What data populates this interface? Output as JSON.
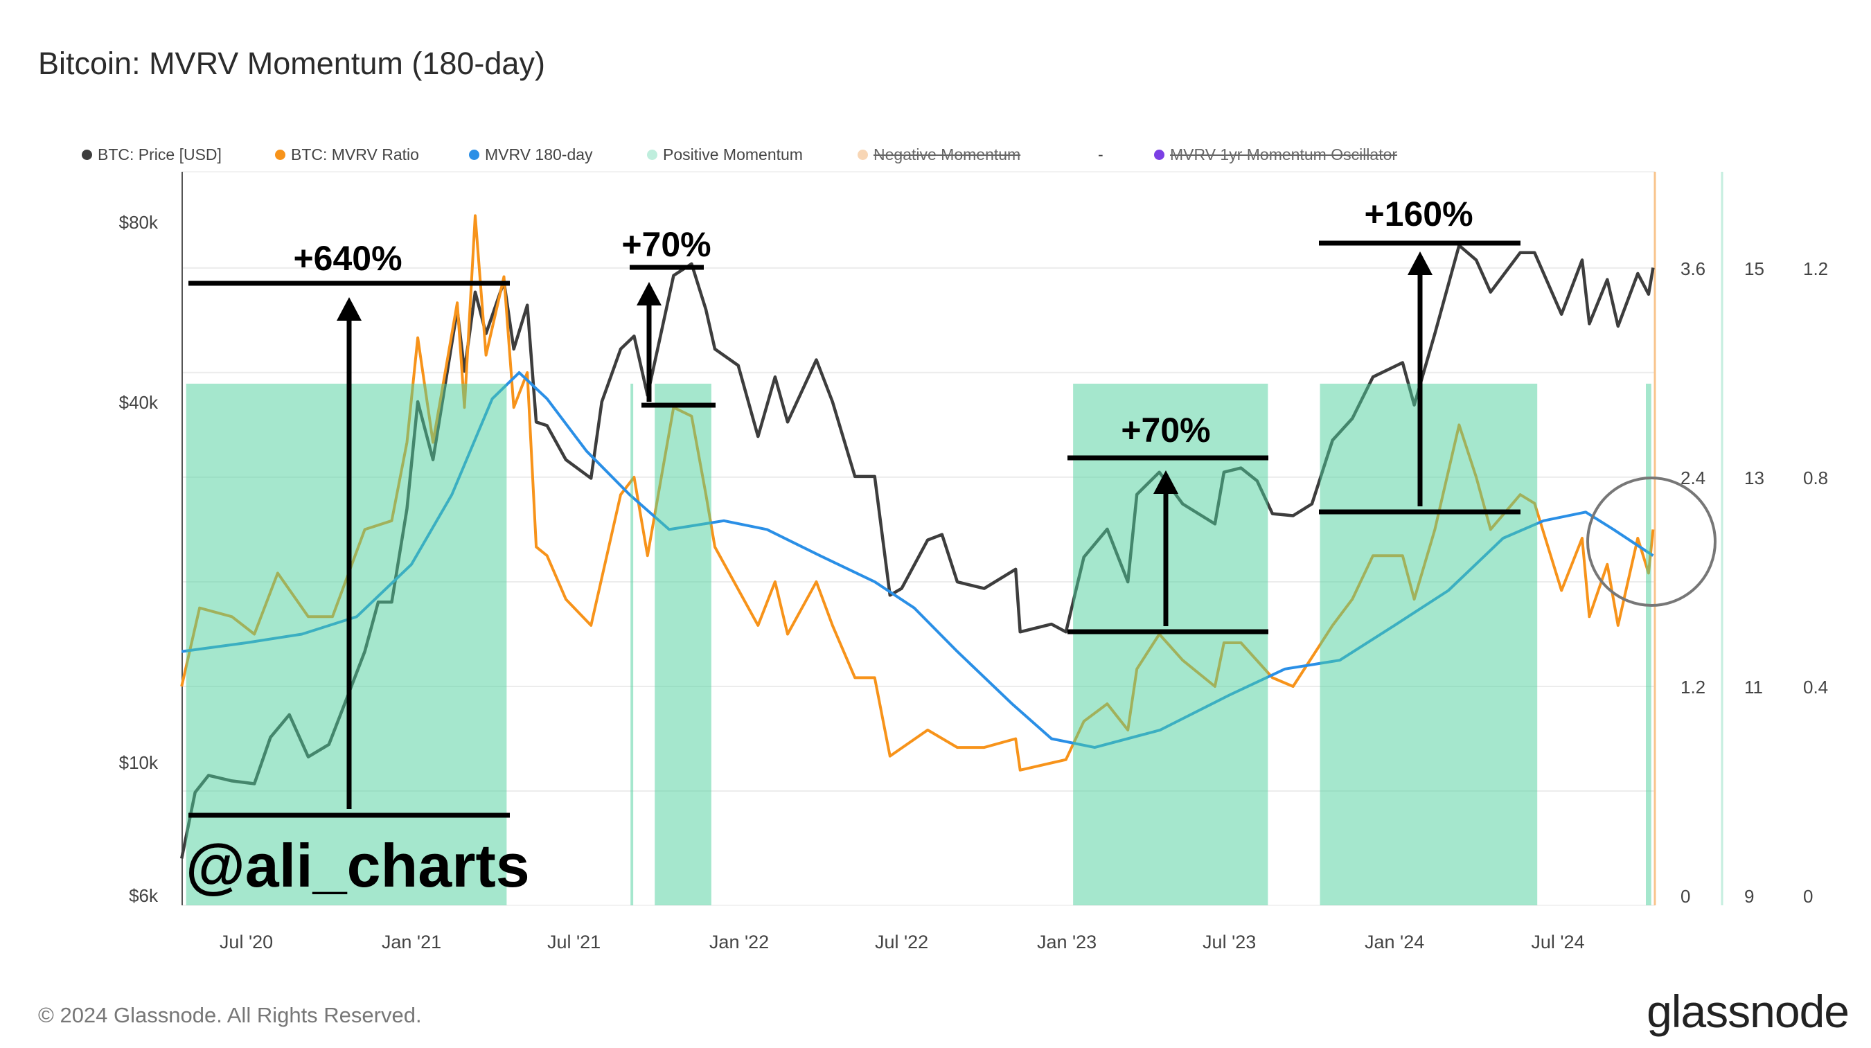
{
  "title": "Bitcoin: MVRV Momentum (180-day)",
  "legend": [
    {
      "label": "BTC: Price [USD]",
      "color": "#3d3d3d",
      "active": true
    },
    {
      "label": "BTC: MVRV Ratio",
      "color": "#f7931a",
      "active": true
    },
    {
      "label": "MVRV 180-day",
      "color": "#2a8fe6",
      "active": true
    },
    {
      "label": "Positive Momentum",
      "color": "#bfeedd",
      "active": true
    },
    {
      "label": "Negative Momentum",
      "color": "#f8d6b5",
      "active": false
    },
    {
      "label": "-",
      "color": "",
      "active": true
    },
    {
      "label": "MVRV 1yr Momentum Oscillator",
      "color": "#7b3fe4",
      "active": false
    }
  ],
  "footer": "© 2024 Glassnode. All Rights Reserved.",
  "logo": "glassnode",
  "annotations": {
    "watermark": "@ali_charts",
    "gains": [
      "+640%",
      "+70%",
      "+70%",
      "+160%"
    ]
  },
  "chart_data": {
    "type": "line",
    "title": "Bitcoin: MVRV Momentum (180-day)",
    "x_ticks": [
      "Jul '20",
      "Jan '21",
      "Jul '21",
      "Jan '22",
      "Jul '22",
      "Jan '23",
      "Jul '23",
      "Jan '24",
      "Jul '24"
    ],
    "x_range": [
      "2020-04-20",
      "2024-10-16"
    ],
    "y_left": {
      "scale": "log",
      "ticks": [
        "$6k",
        "$10k",
        "$40k",
        "$80k"
      ]
    },
    "y_right_1": {
      "ticks": [
        "0",
        "1.2",
        "2.4",
        "3.6"
      ]
    },
    "y_right_2": {
      "ticks": [
        "9",
        "11",
        "13",
        "15"
      ]
    },
    "y_right_3": {
      "ticks": [
        "0",
        "0.4",
        "0.8",
        "1.2"
      ]
    },
    "grid": true,
    "legend_position": "top",
    "positive_momentum_ranges": [
      [
        "2020-04-25",
        "2021-04-17"
      ],
      [
        "2021-09-02",
        "2021-09-05"
      ],
      [
        "2021-09-29",
        "2021-12-01"
      ],
      [
        "2023-01-08",
        "2023-08-13"
      ],
      [
        "2023-10-10",
        "2024-06-08"
      ],
      [
        "2024-10-07",
        "2024-10-13"
      ]
    ],
    "series": [
      {
        "name": "BTC: Price [USD]",
        "axis": "left",
        "color": "#3d3d3d",
        "points": [
          [
            "2020-04-20",
            6900
          ],
          [
            "2020-05-05",
            8900
          ],
          [
            "2020-05-20",
            9500
          ],
          [
            "2020-06-15",
            9300
          ],
          [
            "2020-07-10",
            9200
          ],
          [
            "2020-07-28",
            11000
          ],
          [
            "2020-08-18",
            12000
          ],
          [
            "2020-09-08",
            10200
          ],
          [
            "2020-10-01",
            10700
          ],
          [
            "2020-10-22",
            12900
          ],
          [
            "2020-11-10",
            15300
          ],
          [
            "2020-11-25",
            18500
          ],
          [
            "2020-12-10",
            18500
          ],
          [
            "2020-12-27",
            26500
          ],
          [
            "2021-01-08",
            40000
          ],
          [
            "2021-01-25",
            32000
          ],
          [
            "2021-02-10",
            45000
          ],
          [
            "2021-02-21",
            57000
          ],
          [
            "2021-03-01",
            45000
          ],
          [
            "2021-03-13",
            61000
          ],
          [
            "2021-03-25",
            52000
          ],
          [
            "2021-04-14",
            63500
          ],
          [
            "2021-04-25",
            49000
          ],
          [
            "2021-05-10",
            58000
          ],
          [
            "2021-05-20",
            37000
          ],
          [
            "2021-06-01",
            36500
          ],
          [
            "2021-06-22",
            32000
          ],
          [
            "2021-07-20",
            29800
          ],
          [
            "2021-08-01",
            40000
          ],
          [
            "2021-08-22",
            49000
          ],
          [
            "2021-09-06",
            51500
          ],
          [
            "2021-09-21",
            41000
          ],
          [
            "2021-10-20",
            65000
          ],
          [
            "2021-11-09",
            68000
          ],
          [
            "2021-11-25",
            57000
          ],
          [
            "2021-12-05",
            49000
          ],
          [
            "2021-12-31",
            46000
          ],
          [
            "2022-01-22",
            35000
          ],
          [
            "2022-02-10",
            44000
          ],
          [
            "2022-02-24",
            37000
          ],
          [
            "2022-03-28",
            47000
          ],
          [
            "2022-04-15",
            40000
          ],
          [
            "2022-05-10",
            30000
          ],
          [
            "2022-06-01",
            30000
          ],
          [
            "2022-06-18",
            19000
          ],
          [
            "2022-07-01",
            19500
          ],
          [
            "2022-07-30",
            23500
          ],
          [
            "2022-08-15",
            24000
          ],
          [
            "2022-09-01",
            20000
          ],
          [
            "2022-10-01",
            19500
          ],
          [
            "2022-11-05",
            21000
          ],
          [
            "2022-11-10",
            16500
          ],
          [
            "2022-12-15",
            17000
          ],
          [
            "2022-12-31",
            16500
          ],
          [
            "2023-01-20",
            22000
          ],
          [
            "2023-02-15",
            24500
          ],
          [
            "2023-03-10",
            20000
          ],
          [
            "2023-03-20",
            28000
          ],
          [
            "2023-04-14",
            30500
          ],
          [
            "2023-05-10",
            27000
          ],
          [
            "2023-06-15",
            25000
          ],
          [
            "2023-06-25",
            30500
          ],
          [
            "2023-07-14",
            31000
          ],
          [
            "2023-08-01",
            29500
          ],
          [
            "2023-08-18",
            26000
          ],
          [
            "2023-09-10",
            25800
          ],
          [
            "2023-10-01",
            27000
          ],
          [
            "2023-10-24",
            34500
          ],
          [
            "2023-11-15",
            37500
          ],
          [
            "2023-12-08",
            44000
          ],
          [
            "2024-01-10",
            46500
          ],
          [
            "2024-01-23",
            39500
          ],
          [
            "2024-02-15",
            52000
          ],
          [
            "2024-03-13",
            73000
          ],
          [
            "2024-04-01",
            69000
          ],
          [
            "2024-04-17",
            61000
          ],
          [
            "2024-05-20",
            71000
          ],
          [
            "2024-06-05",
            71000
          ],
          [
            "2024-07-05",
            56000
          ],
          [
            "2024-07-28",
            69000
          ],
          [
            "2024-08-05",
            54000
          ],
          [
            "2024-08-25",
            64000
          ],
          [
            "2024-09-06",
            53500
          ],
          [
            "2024-09-28",
            65500
          ],
          [
            "2024-10-10",
            60500
          ],
          [
            "2024-10-15",
            67000
          ]
        ]
      },
      {
        "name": "BTC: MVRV Ratio",
        "axis": "right_1",
        "color": "#f7931a",
        "points": [
          [
            "2020-04-20",
            1.2
          ],
          [
            "2020-05-10",
            1.65
          ],
          [
            "2020-06-15",
            1.6
          ],
          [
            "2020-07-10",
            1.5
          ],
          [
            "2020-08-05",
            1.85
          ],
          [
            "2020-09-08",
            1.6
          ],
          [
            "2020-10-05",
            1.6
          ],
          [
            "2020-11-10",
            2.1
          ],
          [
            "2020-12-10",
            2.15
          ],
          [
            "2020-12-27",
            2.6
          ],
          [
            "2021-01-08",
            3.2
          ],
          [
            "2021-01-25",
            2.6
          ],
          [
            "2021-02-21",
            3.4
          ],
          [
            "2021-03-01",
            2.8
          ],
          [
            "2021-03-13",
            3.9
          ],
          [
            "2021-03-25",
            3.1
          ],
          [
            "2021-04-14",
            3.55
          ],
          [
            "2021-04-25",
            2.8
          ],
          [
            "2021-05-10",
            3.0
          ],
          [
            "2021-05-20",
            2.0
          ],
          [
            "2021-06-01",
            1.95
          ],
          [
            "2021-06-22",
            1.7
          ],
          [
            "2021-07-20",
            1.55
          ],
          [
            "2021-08-22",
            2.3
          ],
          [
            "2021-09-06",
            2.4
          ],
          [
            "2021-09-21",
            1.95
          ],
          [
            "2021-10-20",
            2.8
          ],
          [
            "2021-11-09",
            2.75
          ],
          [
            "2021-11-25",
            2.3
          ],
          [
            "2021-12-05",
            2.0
          ],
          [
            "2022-01-22",
            1.55
          ],
          [
            "2022-02-10",
            1.8
          ],
          [
            "2022-02-24",
            1.5
          ],
          [
            "2022-03-28",
            1.8
          ],
          [
            "2022-04-15",
            1.55
          ],
          [
            "2022-05-10",
            1.25
          ],
          [
            "2022-06-01",
            1.25
          ],
          [
            "2022-06-18",
            0.8
          ],
          [
            "2022-07-30",
            0.95
          ],
          [
            "2022-09-01",
            0.85
          ],
          [
            "2022-10-01",
            0.85
          ],
          [
            "2022-11-05",
            0.9
          ],
          [
            "2022-11-10",
            0.72
          ],
          [
            "2022-12-31",
            0.78
          ],
          [
            "2023-01-20",
            1.0
          ],
          [
            "2023-02-15",
            1.1
          ],
          [
            "2023-03-10",
            0.95
          ],
          [
            "2023-03-20",
            1.3
          ],
          [
            "2023-04-14",
            1.5
          ],
          [
            "2023-05-10",
            1.35
          ],
          [
            "2023-06-15",
            1.2
          ],
          [
            "2023-06-25",
            1.45
          ],
          [
            "2023-07-14",
            1.45
          ],
          [
            "2023-08-18",
            1.25
          ],
          [
            "2023-09-10",
            1.2
          ],
          [
            "2023-10-24",
            1.55
          ],
          [
            "2023-11-15",
            1.7
          ],
          [
            "2023-12-08",
            1.95
          ],
          [
            "2024-01-10",
            1.95
          ],
          [
            "2024-01-23",
            1.7
          ],
          [
            "2024-02-15",
            2.1
          ],
          [
            "2024-03-13",
            2.7
          ],
          [
            "2024-04-01",
            2.4
          ],
          [
            "2024-04-17",
            2.1
          ],
          [
            "2024-05-20",
            2.3
          ],
          [
            "2024-06-05",
            2.25
          ],
          [
            "2024-07-05",
            1.75
          ],
          [
            "2024-07-28",
            2.05
          ],
          [
            "2024-08-05",
            1.6
          ],
          [
            "2024-08-25",
            1.9
          ],
          [
            "2024-09-06",
            1.55
          ],
          [
            "2024-09-28",
            2.05
          ],
          [
            "2024-10-10",
            1.85
          ],
          [
            "2024-10-15",
            2.1
          ]
        ]
      },
      {
        "name": "MVRV 180-day",
        "axis": "right_1",
        "color": "#2a8fe6",
        "points": [
          [
            "2020-04-20",
            1.4
          ],
          [
            "2020-07-01",
            1.45
          ],
          [
            "2020-09-01",
            1.5
          ],
          [
            "2020-11-01",
            1.6
          ],
          [
            "2021-01-01",
            1.9
          ],
          [
            "2021-02-15",
            2.3
          ],
          [
            "2021-04-01",
            2.85
          ],
          [
            "2021-05-01",
            3.0
          ],
          [
            "2021-06-01",
            2.85
          ],
          [
            "2021-07-15",
            2.55
          ],
          [
            "2021-09-01",
            2.3
          ],
          [
            "2021-10-15",
            2.1
          ],
          [
            "2021-12-15",
            2.15
          ],
          [
            "2022-02-01",
            2.1
          ],
          [
            "2022-04-01",
            1.95
          ],
          [
            "2022-06-01",
            1.8
          ],
          [
            "2022-07-15",
            1.65
          ],
          [
            "2022-09-01",
            1.4
          ],
          [
            "2022-11-01",
            1.1
          ],
          [
            "2022-12-15",
            0.9
          ],
          [
            "2023-02-01",
            0.85
          ],
          [
            "2023-04-15",
            0.95
          ],
          [
            "2023-07-01",
            1.15
          ],
          [
            "2023-09-01",
            1.3
          ],
          [
            "2023-11-01",
            1.35
          ],
          [
            "2024-01-01",
            1.55
          ],
          [
            "2024-03-01",
            1.75
          ],
          [
            "2024-05-01",
            2.05
          ],
          [
            "2024-06-15",
            2.15
          ],
          [
            "2024-08-01",
            2.2
          ],
          [
            "2024-09-01",
            2.1
          ],
          [
            "2024-10-15",
            1.95
          ]
        ]
      }
    ]
  }
}
